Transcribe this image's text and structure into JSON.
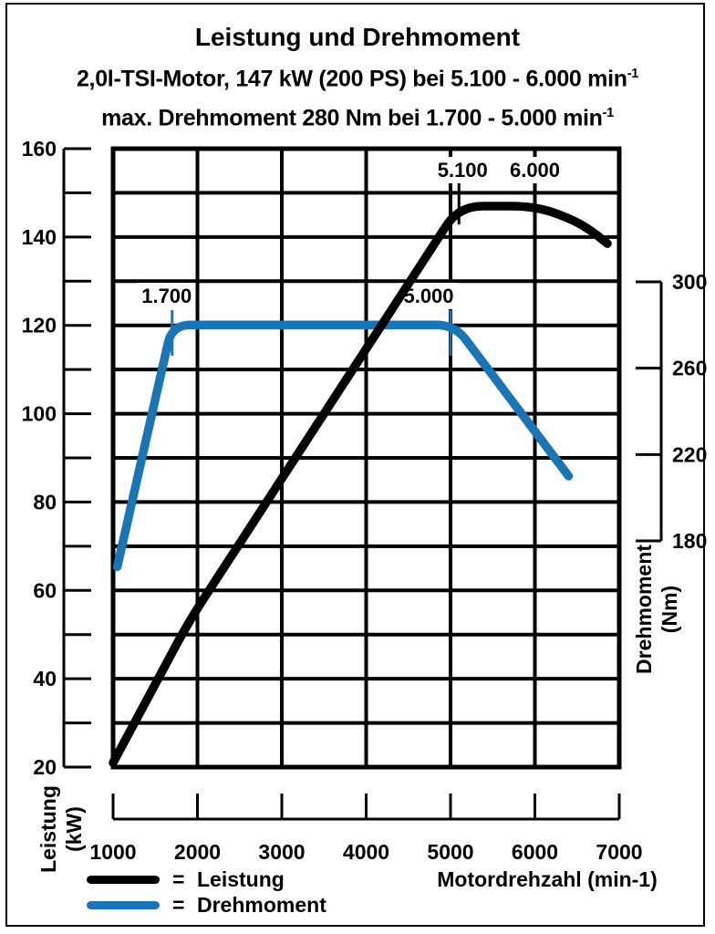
{
  "title": "Leistung und Drehmoment",
  "subtitle_power": {
    "text": "2,0l-TSI-Motor, 147 kW (200 PS) bei 5.100 - 6.000 min",
    "sup": "-1"
  },
  "subtitle_torque": {
    "text": "max. Drehmoment 280 Nm bei 1.700 - 5.000 min",
    "sup": "-1"
  },
  "colors": {
    "power": "#000000",
    "torque": "#1b74b4",
    "background": "#ffffff"
  },
  "chart_data": {
    "type": "line",
    "xlabel": "Motordrehzahl (min-1)",
    "x_axis": {
      "min": 1000,
      "max": 7000,
      "tick_step": 1000,
      "tick_labels": [
        "1000",
        "2000",
        "3000",
        "4000",
        "5000",
        "6000",
        "7000"
      ]
    },
    "y_left_axis": {
      "title_lines": [
        "Leistung",
        "(kW)"
      ],
      "min": 20,
      "max": 160,
      "tick_step": 10,
      "label_step": 20,
      "tick_labels": [
        "20",
        "40",
        "60",
        "80",
        "100",
        "120",
        "140",
        "160"
      ]
    },
    "y_right_axis": {
      "title_lines": [
        "Drehmoment",
        "(Nm)"
      ],
      "min": 180,
      "max": 300,
      "tick_step": 40,
      "tick_labels": [
        "300",
        "260",
        "220",
        "180"
      ]
    },
    "grid": "on",
    "series": [
      {
        "name": "Leistung",
        "unit": "kW",
        "axis": "left",
        "color": "#000000",
        "points": [
          [
            1000,
            21
          ],
          [
            1900,
            53
          ],
          [
            5100,
            147
          ],
          [
            6000,
            147
          ],
          [
            6450,
            144
          ],
          [
            6700,
            141
          ],
          [
            6860,
            138.5
          ]
        ]
      },
      {
        "name": "Drehmoment",
        "unit": "Nm",
        "axis": "right",
        "color": "#1b74b4",
        "points": [
          [
            1050,
            168
          ],
          [
            1700,
            280
          ],
          [
            5050,
            280
          ],
          [
            6400,
            210
          ]
        ]
      }
    ],
    "annotations": [
      {
        "text": "5.100",
        "rpm": 5100,
        "series": "Leistung",
        "row": "top",
        "dx": 4,
        "tick": true
      },
      {
        "text": "6.000",
        "rpm": 6000,
        "series": "Leistung",
        "row": "top",
        "dx": 0,
        "tick": false
      },
      {
        "text": "1.700",
        "rpm": 1700,
        "series": "Drehmoment",
        "row": "mid",
        "dx": -6,
        "tick": true
      },
      {
        "text": "5.000",
        "rpm": 5000,
        "series": "Drehmoment",
        "row": "mid",
        "dx": -24,
        "tick": true
      }
    ],
    "legend": [
      {
        "eq": "=",
        "label": "Leistung"
      },
      {
        "eq": "=",
        "label": "Drehmoment"
      }
    ]
  }
}
